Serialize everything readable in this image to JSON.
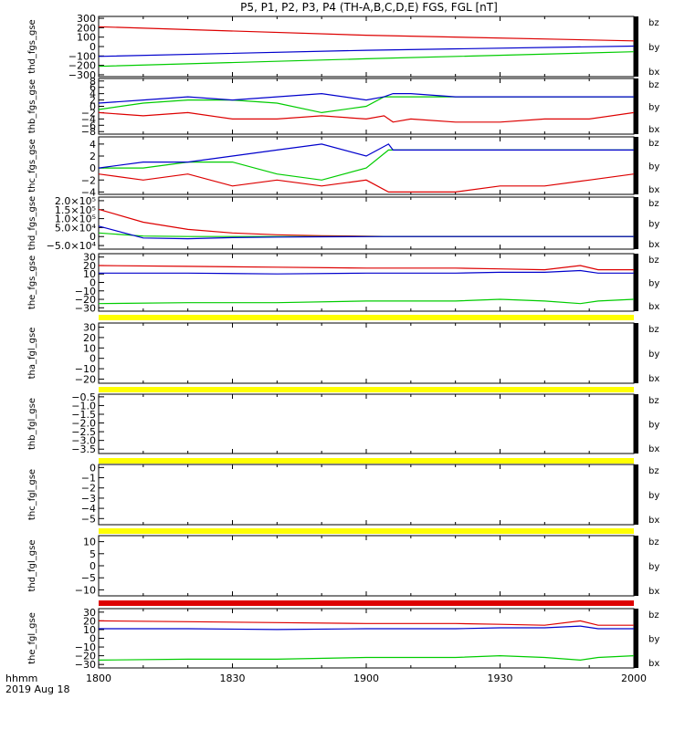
{
  "title": "P5, P1, P2, P3, P4 (TH-A,B,C,D,E) FGS, FGL [nT]",
  "x_axis": {
    "ticks": [
      "1800",
      "1830",
      "1900",
      "1930",
      "2000"
    ],
    "label_line1": "hhmm",
    "label_line2": "2019 Aug 18"
  },
  "colors": {
    "bz": "#dd0000",
    "by": "#00cc00",
    "bx": "#0000cc",
    "bar_yellow": "#ffff00",
    "bar_red": "#dd0000",
    "frame": "#000000"
  },
  "chart_data": [
    {
      "type": "line",
      "ylabel": "thd_fgs_gse",
      "ylim": [
        -320,
        320
      ],
      "yticks": [
        "300",
        "200",
        "100",
        "0",
        "−100",
        "−200",
        "−300"
      ],
      "ytick_values": [
        300,
        200,
        100,
        0,
        -100,
        -200,
        -300
      ],
      "legend": [
        "bz",
        "by",
        "bx"
      ],
      "x": [
        0,
        60,
        120
      ],
      "series": [
        {
          "name": "bz",
          "values": [
            210,
            120,
            60
          ]
        },
        {
          "name": "by",
          "values": [
            -210,
            -130,
            -55
          ]
        },
        {
          "name": "bx",
          "values": [
            -105,
            -40,
            5
          ]
        }
      ]
    },
    {
      "type": "line",
      "ylabel": "thb_fgs_gse",
      "ylim": [
        -8.8,
        8.8
      ],
      "yticks": [
        "8",
        "6",
        "4",
        "2",
        "0",
        "−2",
        "−4",
        "−6",
        "−8"
      ],
      "ytick_values": [
        8,
        6,
        4,
        2,
        0,
        -2,
        -4,
        -6,
        -8
      ],
      "legend": [
        "bz",
        "by",
        "bx"
      ],
      "x": [
        0,
        10,
        20,
        30,
        40,
        50,
        60,
        64,
        66,
        70,
        80,
        90,
        100,
        110,
        120
      ],
      "series": [
        {
          "name": "bz",
          "values": [
            -2,
            -3,
            -2,
            -4,
            -4,
            -3,
            -4,
            -3,
            -5,
            -4,
            -5,
            -5,
            -4,
            -4,
            -2
          ]
        },
        {
          "name": "by",
          "values": [
            -1,
            1,
            2,
            2,
            1,
            -2,
            0,
            3,
            3,
            3,
            3,
            3,
            3,
            3,
            3
          ]
        },
        {
          "name": "bx",
          "values": [
            1,
            2,
            3,
            2,
            3,
            4,
            2,
            3,
            4,
            4,
            3,
            3,
            3,
            3,
            3
          ]
        }
      ]
    },
    {
      "type": "line",
      "ylabel": "thc_fgs_gse",
      "ylim": [
        -4.4,
        5.2
      ],
      "yticks": [
        "4",
        "2",
        "0",
        "−2",
        "−4"
      ],
      "ytick_values": [
        4,
        2,
        0,
        -2,
        -4
      ],
      "legend": [
        "bz",
        "by",
        "bx"
      ],
      "x": [
        0,
        10,
        20,
        30,
        40,
        50,
        60,
        65,
        66,
        70,
        80,
        90,
        100,
        110,
        120
      ],
      "series": [
        {
          "name": "bz",
          "values": [
            -1,
            -2,
            -1,
            -3,
            -2,
            -3,
            -2,
            -4,
            -4,
            -4,
            -4,
            -3,
            -3,
            -2,
            -1
          ]
        },
        {
          "name": "by",
          "values": [
            0,
            0,
            1,
            1,
            -1,
            -2,
            0,
            3,
            3,
            3,
            3,
            3,
            3,
            3,
            3
          ]
        },
        {
          "name": "bx",
          "values": [
            0,
            1,
            1,
            2,
            3,
            4,
            2,
            4,
            3,
            3,
            3,
            3,
            3,
            3,
            3
          ]
        }
      ]
    },
    {
      "type": "line",
      "ylabel": "thd_fgs_gse",
      "ylim": [
        -70000,
        220000
      ],
      "yticks": [
        "2.0×10⁵",
        "1.5×10⁵",
        "1.0×10⁵",
        "5.0×10⁴",
        "0",
        "−5.0×10⁴"
      ],
      "ytick_values": [
        200000,
        150000,
        100000,
        50000,
        0,
        -50000
      ],
      "legend": [
        "bz",
        "by",
        "bx"
      ],
      "x": [
        0,
        10,
        20,
        30,
        40,
        50,
        60,
        66,
        120
      ],
      "series": [
        {
          "name": "bz",
          "values": [
            152000,
            80000,
            40000,
            20000,
            10000,
            5000,
            2000,
            0,
            0
          ]
        },
        {
          "name": "by",
          "values": [
            20000,
            3000,
            0,
            0,
            0,
            0,
            0,
            0,
            0
          ]
        },
        {
          "name": "bx",
          "values": [
            58000,
            -8000,
            -12000,
            -6000,
            -3000,
            -1500,
            -500,
            0,
            0
          ]
        }
      ]
    },
    {
      "type": "line",
      "ylabel": "the_fgs_gse",
      "ylim": [
        -34,
        34
      ],
      "yticks": [
        "30",
        "20",
        "10",
        "0",
        "−10",
        "−20",
        "−30"
      ],
      "ytick_values": [
        30,
        20,
        10,
        0,
        -10,
        -20,
        -30
      ],
      "legend": [
        "bz",
        "by",
        "bx"
      ],
      "x": [
        0,
        20,
        40,
        60,
        80,
        90,
        100,
        108,
        112,
        120
      ],
      "series": [
        {
          "name": "bz",
          "values": [
            20,
            19,
            18,
            17,
            17,
            16,
            15,
            20,
            15,
            15
          ]
        },
        {
          "name": "by",
          "values": [
            -25,
            -24,
            -24,
            -22,
            -22,
            -20,
            -22,
            -25,
            -22,
            -20
          ]
        },
        {
          "name": "bx",
          "values": [
            11,
            11,
            10,
            11,
            11,
            12,
            12,
            14,
            11,
            11
          ]
        }
      ]
    },
    {
      "type": "line",
      "ylabel": "tha_fgl_gse",
      "ylim": [
        -24,
        34
      ],
      "yticks": [
        "30",
        "20",
        "10",
        "0",
        "−10",
        "−20"
      ],
      "ytick_values": [
        30,
        20,
        10,
        0,
        -10,
        -20
      ],
      "legend": [
        "bz",
        "by",
        "bx"
      ],
      "series": []
    },
    {
      "type": "line",
      "ylabel": "thb_fgl_gse",
      "ylim": [
        -3.75,
        -0.35
      ],
      "yticks": [
        "−0.5",
        "−1.0",
        "−1.5",
        "−2.0",
        "−2.5",
        "−3.0",
        "−3.5"
      ],
      "ytick_values": [
        -0.5,
        -1.0,
        -1.5,
        -2.0,
        -2.5,
        -3.0,
        -3.5
      ],
      "legend": [
        "bz",
        "by",
        "bx"
      ],
      "series": []
    },
    {
      "type": "line",
      "ylabel": "thc_fgl_gse",
      "ylim": [
        -5.6,
        0.3
      ],
      "yticks": [
        "0",
        "−1",
        "−2",
        "−3",
        "−4",
        "−5"
      ],
      "ytick_values": [
        0,
        -1,
        -2,
        -3,
        -4,
        -5
      ],
      "legend": [
        "bz",
        "by",
        "bx"
      ],
      "series": []
    },
    {
      "type": "line",
      "ylabel": "thd_fgl_gse",
      "ylim": [
        -12.5,
        12.5
      ],
      "yticks": [
        "10",
        "5",
        "0",
        "−5",
        "−10"
      ],
      "ytick_values": [
        10,
        5,
        0,
        -5,
        -10
      ],
      "legend": [
        "bz",
        "by",
        "bx"
      ],
      "series": []
    },
    {
      "type": "line",
      "ylabel": "the_fgl_gse",
      "ylim": [
        -34,
        34
      ],
      "yticks": [
        "30",
        "20",
        "10",
        "0",
        "−10",
        "−20",
        "−30"
      ],
      "ytick_values": [
        30,
        20,
        10,
        0,
        -10,
        -20,
        -30
      ],
      "legend": [
        "bz",
        "by",
        "bx"
      ],
      "x": [
        0,
        20,
        40,
        60,
        80,
        90,
        100,
        108,
        112,
        120
      ],
      "series": [
        {
          "name": "bz",
          "values": [
            20,
            19,
            18,
            17,
            17,
            16,
            15,
            20,
            15,
            15
          ]
        },
        {
          "name": "by",
          "values": [
            -25,
            -24,
            -24,
            -22,
            -22,
            -20,
            -22,
            -25,
            -22,
            -20
          ]
        },
        {
          "name": "bx",
          "values": [
            11,
            11,
            10,
            11,
            11,
            12,
            12,
            14,
            11,
            11
          ]
        }
      ]
    }
  ],
  "status_bars": [
    "yellow",
    "yellow",
    "yellow",
    "yellow",
    "red"
  ]
}
